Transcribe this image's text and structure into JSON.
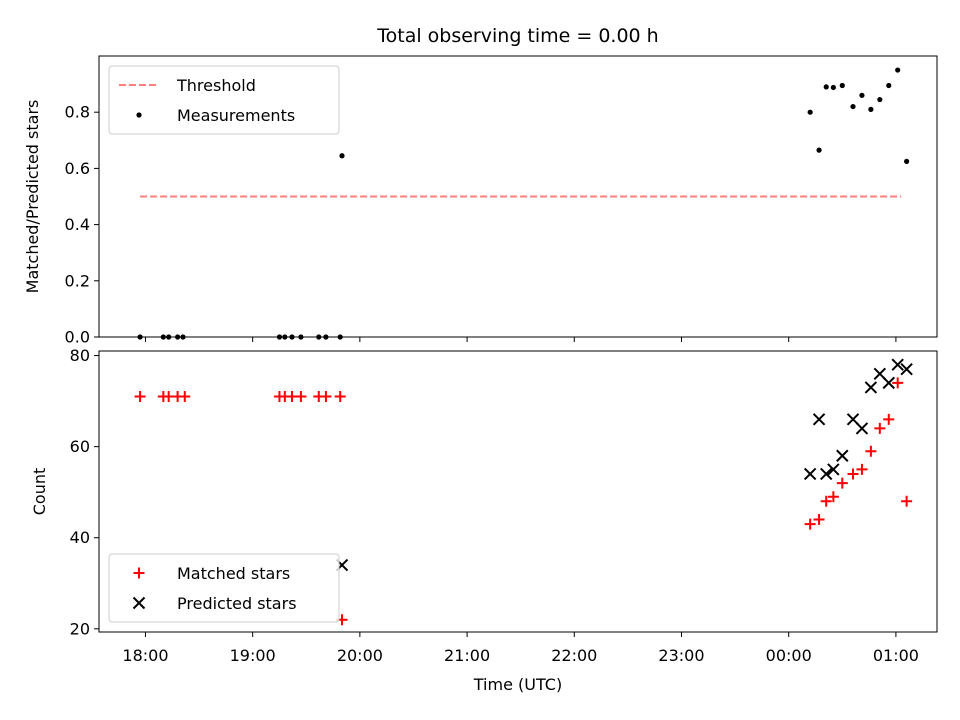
{
  "chart_data": {
    "title": "Total observing time = 0.00 h",
    "xlabel": "Time (UTC)",
    "x_ticks": [
      "18:00",
      "19:00",
      "20:00",
      "21:00",
      "22:00",
      "23:00",
      "00:00",
      "01:00"
    ],
    "panels": [
      {
        "type": "scatter",
        "ylabel": "Matched/Predicted stars",
        "ylim": [
          0.0,
          1.0
        ],
        "y_ticks": [
          "0.0",
          "0.2",
          "0.4",
          "0.6",
          "0.8"
        ],
        "legend_position": "upper-left",
        "threshold": {
          "name": "Threshold",
          "color": "#ff7f7f",
          "style": "dashed",
          "value": 0.5,
          "x_range": [
            "17:57",
            "01:03"
          ]
        },
        "series": [
          {
            "name": "Measurements",
            "marker": "dot",
            "color": "#000000",
            "points": [
              {
                "x": "17:57",
                "y": 0.0
              },
              {
                "x": "18:10",
                "y": 0.0
              },
              {
                "x": "18:13",
                "y": 0.0
              },
              {
                "x": "18:18",
                "y": 0.0
              },
              {
                "x": "18:21",
                "y": 0.0
              },
              {
                "x": "19:15",
                "y": 0.0
              },
              {
                "x": "19:18",
                "y": 0.0
              },
              {
                "x": "19:22",
                "y": 0.0
              },
              {
                "x": "19:27",
                "y": 0.0
              },
              {
                "x": "19:37",
                "y": 0.0
              },
              {
                "x": "19:41",
                "y": 0.0
              },
              {
                "x": "19:49",
                "y": 0.0
              },
              {
                "x": "19:50",
                "y": 0.645
              },
              {
                "x": "00:12",
                "y": 0.8
              },
              {
                "x": "00:17",
                "y": 0.665
              },
              {
                "x": "00:21",
                "y": 0.89
              },
              {
                "x": "00:25",
                "y": 0.888
              },
              {
                "x": "00:30",
                "y": 0.895
              },
              {
                "x": "00:36",
                "y": 0.82
              },
              {
                "x": "00:41",
                "y": 0.86
              },
              {
                "x": "00:46",
                "y": 0.81
              },
              {
                "x": "00:51",
                "y": 0.845
              },
              {
                "x": "00:56",
                "y": 0.895
              },
              {
                "x": "01:01",
                "y": 0.95
              },
              {
                "x": "01:06",
                "y": 0.625
              }
            ]
          }
        ]
      },
      {
        "type": "scatter",
        "ylabel": "Count",
        "ylim": [
          19.3,
          81.0
        ],
        "y_ticks": [
          "20",
          "40",
          "60",
          "80"
        ],
        "legend_position": "lower-left",
        "series": [
          {
            "name": "Matched stars",
            "marker": "plus",
            "color": "#ff0000",
            "points": [
              {
                "x": "17:57",
                "y": 71
              },
              {
                "x": "18:10",
                "y": 71
              },
              {
                "x": "18:13",
                "y": 71
              },
              {
                "x": "18:18",
                "y": 71
              },
              {
                "x": "18:22",
                "y": 71
              },
              {
                "x": "19:15",
                "y": 71
              },
              {
                "x": "19:18",
                "y": 71
              },
              {
                "x": "19:22",
                "y": 71
              },
              {
                "x": "19:27",
                "y": 71
              },
              {
                "x": "19:37",
                "y": 71
              },
              {
                "x": "19:41",
                "y": 71
              },
              {
                "x": "19:49",
                "y": 71
              },
              {
                "x": "19:50",
                "y": 22
              },
              {
                "x": "00:12",
                "y": 43
              },
              {
                "x": "00:17",
                "y": 44
              },
              {
                "x": "00:21",
                "y": 48
              },
              {
                "x": "00:25",
                "y": 49
              },
              {
                "x": "00:30",
                "y": 52
              },
              {
                "x": "00:36",
                "y": 54
              },
              {
                "x": "00:41",
                "y": 55
              },
              {
                "x": "00:46",
                "y": 59
              },
              {
                "x": "00:51",
                "y": 64
              },
              {
                "x": "00:56",
                "y": 66
              },
              {
                "x": "01:01",
                "y": 74
              },
              {
                "x": "01:06",
                "y": 48
              }
            ]
          },
          {
            "name": "Predicted stars",
            "marker": "x",
            "color": "#000000",
            "points": [
              {
                "x": "19:50",
                "y": 34
              },
              {
                "x": "00:12",
                "y": 54
              },
              {
                "x": "00:17",
                "y": 66
              },
              {
                "x": "00:21",
                "y": 54
              },
              {
                "x": "00:25",
                "y": 55
              },
              {
                "x": "00:30",
                "y": 58
              },
              {
                "x": "00:36",
                "y": 66
              },
              {
                "x": "00:41",
                "y": 64
              },
              {
                "x": "00:46",
                "y": 73
              },
              {
                "x": "00:51",
                "y": 76
              },
              {
                "x": "00:56",
                "y": 74
              },
              {
                "x": "01:01",
                "y": 78
              },
              {
                "x": "01:06",
                "y": 77
              }
            ]
          }
        ]
      }
    ]
  }
}
